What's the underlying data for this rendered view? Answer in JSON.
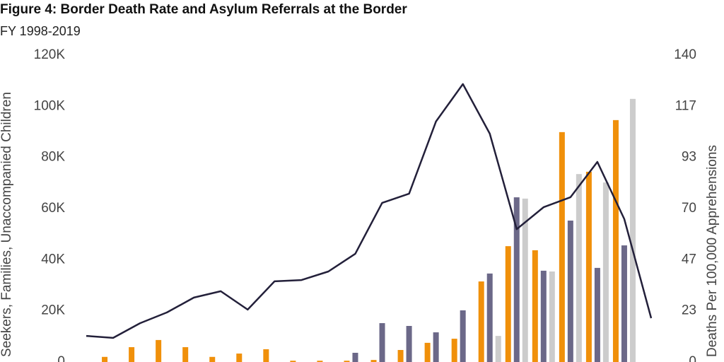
{
  "chart_data": {
    "type": "bar-line",
    "title": "Figure 4: Border Death Rate and Asylum Referrals at the Border",
    "subtitle": "FY 1998-2019",
    "y_label": "Seekers, Families, Unaccompanied Children",
    "y2_label": "Deaths Per 100,000 Apprehensions",
    "ylim": [
      0,
      120000
    ],
    "yticks": [
      {
        "value": 0,
        "label": "0"
      },
      {
        "value": 20000,
        "label": "20K"
      },
      {
        "value": 40000,
        "label": "40K"
      },
      {
        "value": 60000,
        "label": "60K"
      },
      {
        "value": 80000,
        "label": "80K"
      },
      {
        "value": 100000,
        "label": "100K"
      },
      {
        "value": 120000,
        "label": "120K"
      }
    ],
    "y2lim": [
      0,
      140
    ],
    "y2ticks": [
      0,
      {
        "value": 23.33,
        "label": "23"
      },
      {
        "value": 46.67,
        "label": "47"
      },
      70,
      {
        "value": 93.33,
        "label": "93"
      },
      {
        "value": 116.67,
        "label": "117"
      },
      140
    ],
    "series": [
      {
        "type": "bar",
        "color": "#f0900a",
        "values": [
          null,
          2000,
          5800,
          8600,
          5800,
          2000,
          3300,
          5000,
          500,
          500,
          500,
          800,
          4700,
          7500,
          9100,
          31500,
          45300,
          43700,
          89900,
          74400,
          94600,
          null
        ]
      },
      {
        "type": "bar",
        "color": "#6b6888",
        "values": [
          null,
          null,
          null,
          null,
          null,
          null,
          null,
          null,
          null,
          null,
          3600,
          15200,
          14100,
          11600,
          20200,
          34600,
          64400,
          35700,
          55300,
          36800,
          45600,
          null
        ]
      },
      {
        "type": "bar",
        "color": "#cccccc",
        "values": [
          null,
          null,
          null,
          null,
          null,
          null,
          null,
          null,
          null,
          null,
          null,
          null,
          null,
          null,
          null,
          10200,
          63900,
          35400,
          73500,
          70200,
          102900,
          null
        ]
      },
      {
        "type": "line",
        "axis": "y2",
        "color": "#23203a",
        "values": [
          11.9,
          11.0,
          17.7,
          22.6,
          29.4,
          32.3,
          23.9,
          36.8,
          37.4,
          41.3,
          49.4,
          72.6,
          76.8,
          109.7,
          126.8,
          104.2,
          60.6,
          70.6,
          75.2,
          91.3,
          65.2,
          20.0
        ]
      }
    ]
  }
}
